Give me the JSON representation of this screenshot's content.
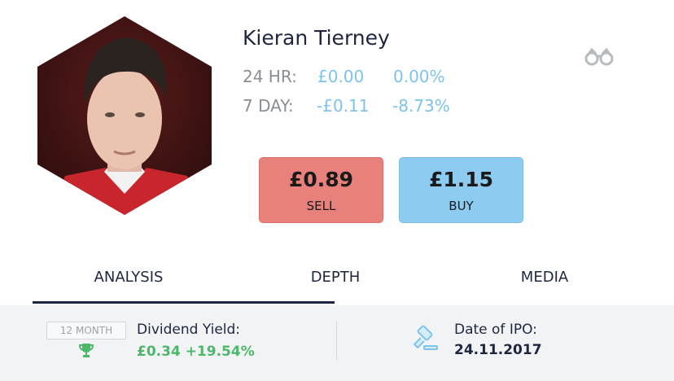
{
  "header": {
    "name": "Kieran Tierney"
  },
  "stats": [
    {
      "label": "24 HR:",
      "price_change": "£0.00",
      "percent_change": "0.00%"
    },
    {
      "label": "7 DAY:",
      "price_change": "-£0.11",
      "percent_change": "-8.73%"
    }
  ],
  "buttons": [
    {
      "price": "£0.89",
      "label": "SELL"
    },
    {
      "price": "£1.15",
      "label": "BUY"
    }
  ],
  "tabs": [
    "ANALYSIS",
    "DEPTH",
    "MEDIA"
  ],
  "dividend": {
    "badge": "12 MONTH",
    "title": "Dividend Yield:",
    "value": "£0.34 +19.54%"
  },
  "ipo": {
    "title": "Date of IPO:",
    "date": "24.11.2017"
  }
}
